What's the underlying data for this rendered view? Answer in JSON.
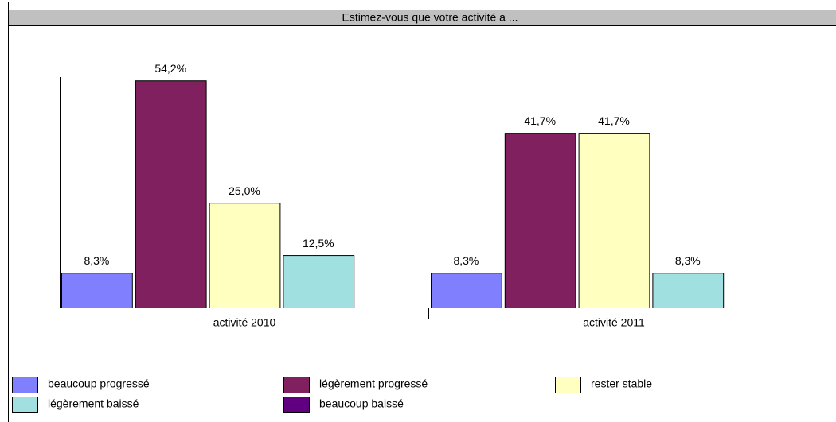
{
  "chart_data": {
    "type": "bar",
    "title": "Estimez-vous que votre activité a ...",
    "categories": [
      "activité 2010",
      "activité 2011"
    ],
    "ylim": [
      0,
      55
    ],
    "series": [
      {
        "name": "beaucoup progressé",
        "color": "#8080ff",
        "values": [
          8.3,
          8.3
        ],
        "value_labels": [
          "8,3%",
          "8,3%"
        ]
      },
      {
        "name": "légèrement progressé",
        "color": "#80205f",
        "values": [
          54.2,
          41.7
        ],
        "value_labels": [
          "54,2%",
          "41,7%"
        ]
      },
      {
        "name": "rester stable",
        "color": "#ffffc0",
        "values": [
          25.0,
          41.7
        ],
        "value_labels": [
          "25,0%",
          "41,7%"
        ]
      },
      {
        "name": "légèrement baissé",
        "color": "#a0e0e0",
        "values": [
          12.5,
          8.3
        ],
        "value_labels": [
          "12,5%",
          "8,3%"
        ]
      },
      {
        "name": "beaucoup baissé",
        "color": "#600080",
        "values": [
          0,
          0
        ]
      }
    ]
  }
}
